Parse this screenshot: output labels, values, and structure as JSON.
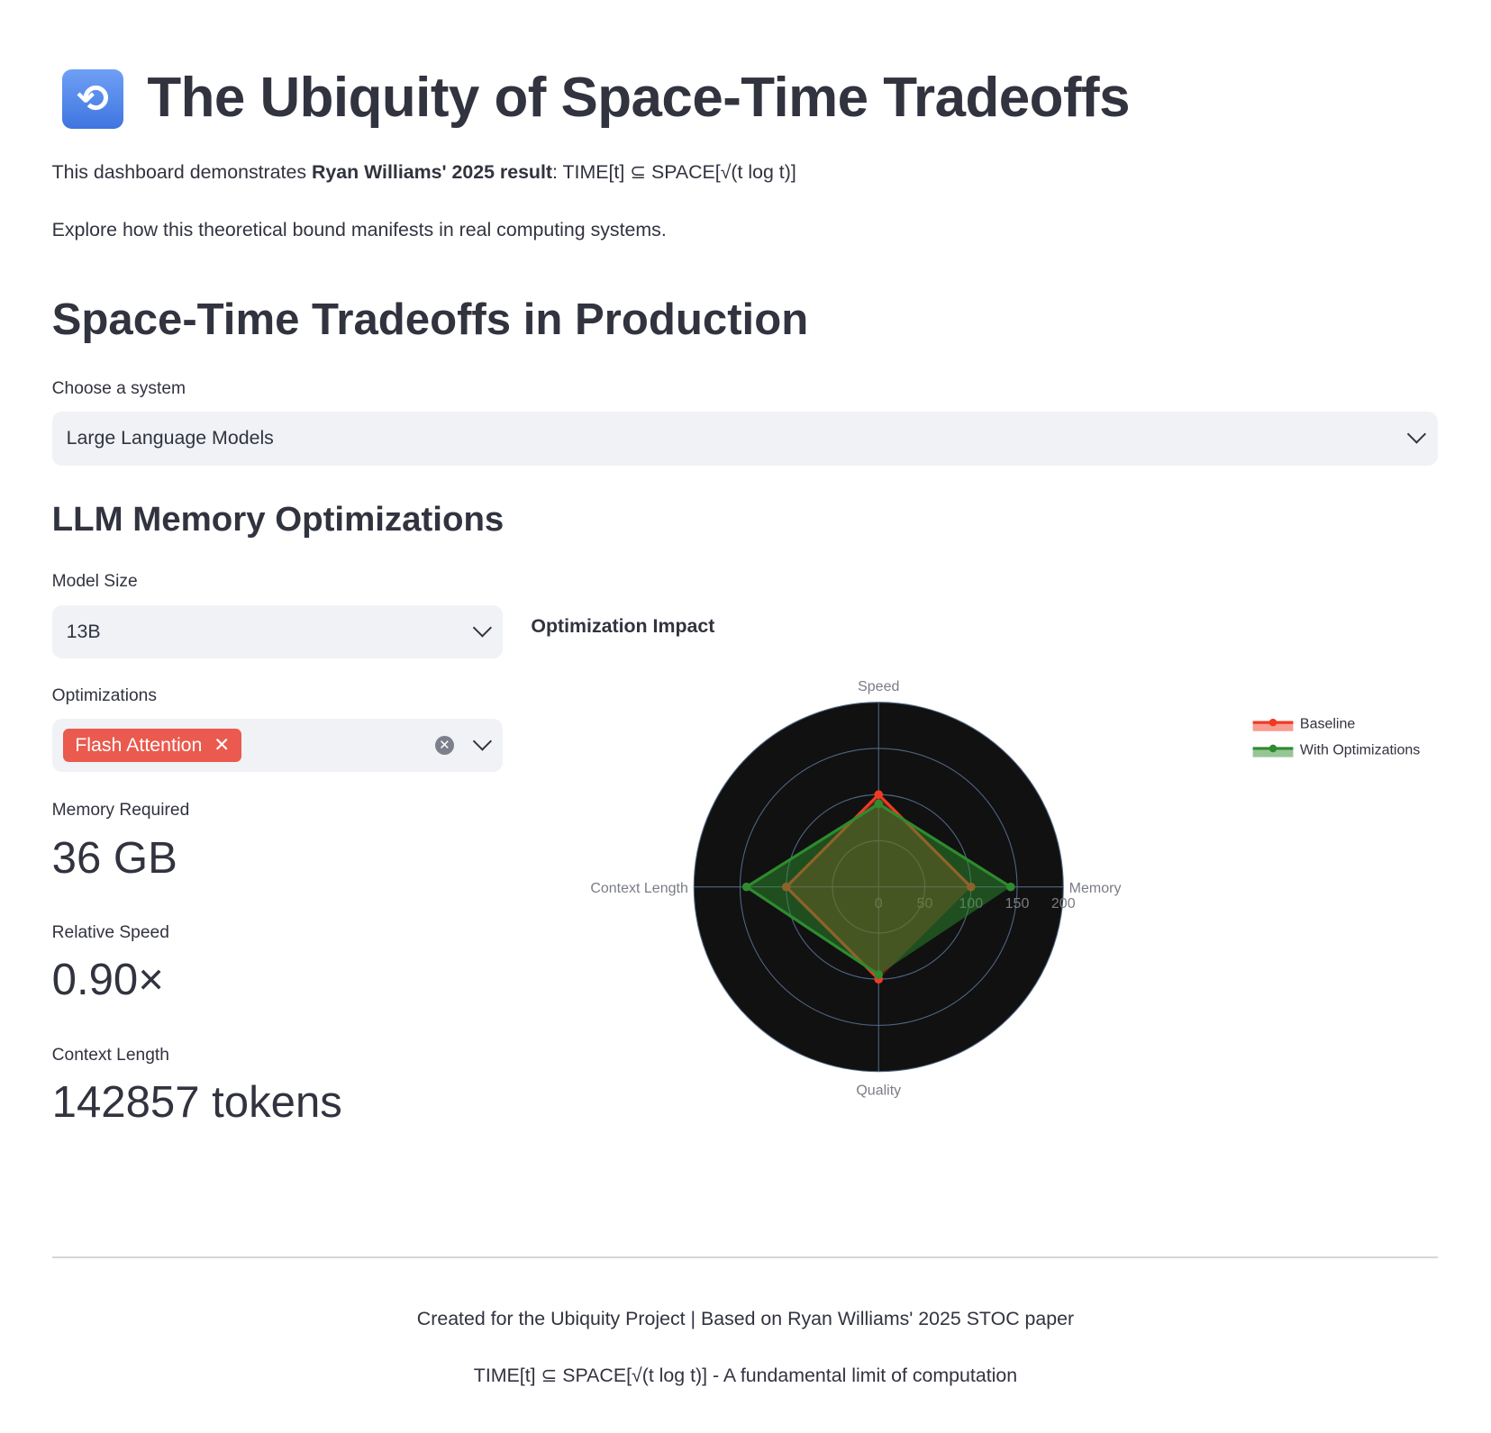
{
  "header": {
    "icon": "arrows-counterclockwise-icon",
    "title": "The Ubiquity of Space-Time Tradeoffs",
    "intro_prefix": "This dashboard demonstrates ",
    "intro_bold": "Ryan Williams' 2025 result",
    "intro_suffix": ": TIME[t] ⊆ SPACE[√(t log t)]",
    "intro2": "Explore how this theoretical bound manifests in real computing systems."
  },
  "section": {
    "title": "Space-Time Tradeoffs in Production",
    "system_label": "Choose a system",
    "system_value": "Large Language Models"
  },
  "llm": {
    "title": "LLM Memory Optimizations",
    "model_size_label": "Model Size",
    "model_size_value": "13B",
    "optimizations_label": "Optimizations",
    "optimizations_selected": [
      "Flash Attention"
    ],
    "tag_color": "#ea5a4e",
    "metrics": [
      {
        "label": "Memory Required",
        "value": "36 GB"
      },
      {
        "label": "Relative Speed",
        "value": "0.90×"
      },
      {
        "label": "Context Length",
        "value": "142857 tokens"
      }
    ]
  },
  "chart_data": {
    "type": "radar",
    "title": "Optimization Impact",
    "categories": [
      "Memory",
      "Speed",
      "Context Length",
      "Quality"
    ],
    "radial_range": [
      0,
      200
    ],
    "radial_ticks": [
      "0",
      "50",
      "100",
      "150",
      "200"
    ],
    "background": "#111111",
    "legend_placement": "top-right",
    "series": [
      {
        "name": "Baseline",
        "values": [
          100,
          100,
          100,
          100
        ],
        "color": "#ef3b24"
      },
      {
        "name": "With Optimizations",
        "values": [
          143,
          90,
          143,
          95
        ],
        "color": "#2e8b2e"
      }
    ]
  },
  "footer": {
    "line1": "Created for the Ubiquity Project | Based on Ryan Williams' 2025 STOC paper",
    "line2": "TIME[t] ⊆ SPACE[√(t log t)] - A fundamental limit of computation"
  }
}
